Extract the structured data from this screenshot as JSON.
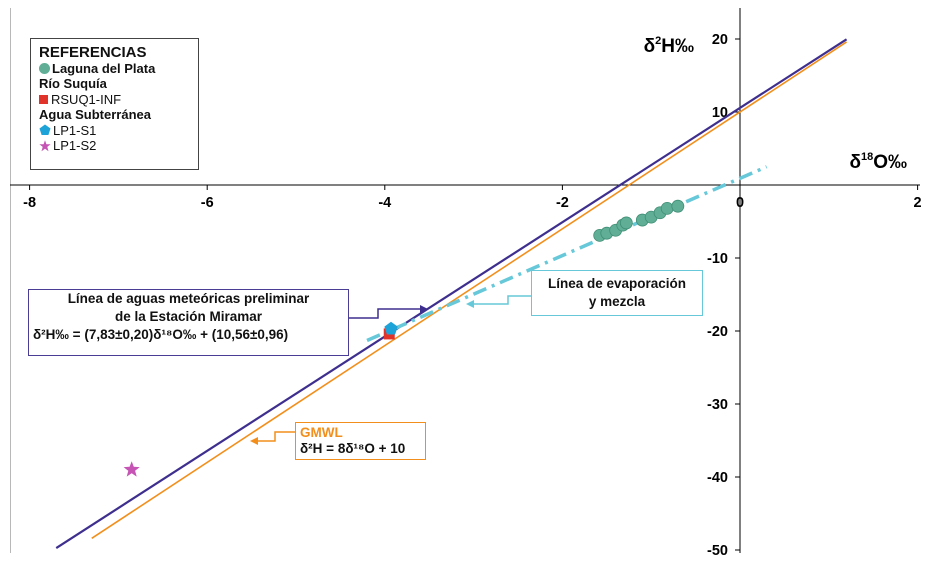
{
  "chart_data": {
    "type": "scatter",
    "x_axis": {
      "label": "δ18O‰",
      "range": [
        -8,
        2
      ],
      "ticks": [
        "-8",
        "-6",
        "-4",
        "-2",
        "0",
        "2"
      ]
    },
    "y_axis": {
      "label": "δ2H‰",
      "range": [
        -50,
        23
      ],
      "ticks": [
        "20",
        "10",
        "-10",
        "-20",
        "-30",
        "-40",
        "-50"
      ]
    },
    "legend": {
      "title": "REFERENCIAS",
      "placement": "top-left",
      "entries": [
        {
          "type": "item",
          "marker": "circle",
          "label": "Laguna del Plata",
          "color": "#5fae95",
          "bold": true
        },
        {
          "type": "group",
          "label": "Río Suquía"
        },
        {
          "type": "item",
          "marker": "square",
          "label": "RSUQ1-INF",
          "color": "#e2332a",
          "bold": false
        },
        {
          "type": "group",
          "label": "Agua Subterránea"
        },
        {
          "type": "item",
          "marker": "pentagon",
          "label": "LP1-S1",
          "color": "#1ea3d8",
          "bold": false
        },
        {
          "type": "item",
          "marker": "star",
          "label": "LP1-S2",
          "color": "#c554b5",
          "bold": false
        }
      ]
    },
    "series": [
      {
        "name": "Laguna del Plata",
        "color": "#5fae95",
        "points": [
          [
            -1.58,
            -6.9
          ],
          [
            -1.5,
            -6.6
          ],
          [
            -1.4,
            -6.2
          ],
          [
            -1.32,
            -5.5
          ],
          [
            -1.28,
            -5.2
          ],
          [
            -1.1,
            -4.8
          ],
          [
            -1.0,
            -4.4
          ],
          [
            -0.9,
            -3.8
          ],
          [
            -0.82,
            -3.2
          ],
          [
            -0.7,
            -2.9
          ]
        ]
      },
      {
        "name": "RSUQ1-INF",
        "color": "#e2332a",
        "points": [
          [
            -3.95,
            -20.4
          ]
        ]
      },
      {
        "name": "LP1-S1",
        "color": "#1ea3d8",
        "points": [
          [
            -3.93,
            -19.7
          ]
        ]
      },
      {
        "name": "LP1-S2",
        "color": "#c554b5",
        "points": [
          [
            -6.85,
            -39
          ]
        ]
      }
    ],
    "lines": [
      {
        "name": "Línea de aguas meteóricas preliminar de la Estación Miramar",
        "color": "#3e2f8f",
        "slope": 7.83,
        "intercept": 10.56,
        "x": [
          -7.7,
          1.2
        ]
      },
      {
        "name": "GMWL",
        "color": "#f28f1c",
        "slope": 8,
        "intercept": 10,
        "x": [
          -7.3,
          1.2
        ]
      },
      {
        "name": "Línea de evaporación y mezcla",
        "color": "#66c8d8",
        "dashed": true,
        "points": [
          [
            -4.2,
            -21.3
          ],
          [
            0.3,
            2.5
          ]
        ]
      }
    ],
    "annotations": {
      "meteoric": {
        "line1": "Línea de aguas meteóricas preliminar",
        "line2": "de la Estación Miramar",
        "equation": "δ²H‰ = (7,83±0,20)δ¹⁸O‰ + (10,56±0,96)"
      },
      "evaporation": {
        "line1": "Línea de evaporación",
        "line2": "y mezcla"
      },
      "gmwl": {
        "title": "GMWL",
        "equation": "δ²H = 8δ¹⁸O + 10"
      }
    }
  }
}
